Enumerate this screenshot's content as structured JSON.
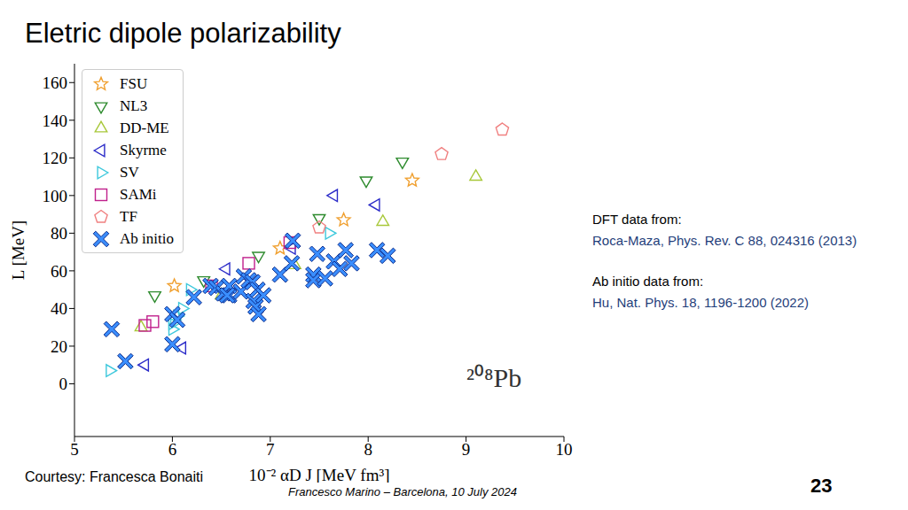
{
  "slide": {
    "title": "Eletric dipole polarizability",
    "notes": [
      {
        "heading": "DFT data from:",
        "reference": "Roca-Maza, Phys. Rev. C 88, 024316 (2013)"
      },
      {
        "heading": "Ab initio data from:",
        "reference": "Hu, Nat. Phys. 18, 1196-1200 (2022)"
      }
    ],
    "credit": "Courtesy: Francesca Bonaiti",
    "footer": "Francesco Marino – Barcelona, 10 July 2024",
    "page": "23"
  },
  "chart_data": {
    "type": "scatter",
    "x_label": "10⁻² αD J [MeV fm³]",
    "y_label": "L [MeV]",
    "annotation": "²⁰⁸Pb",
    "xlim": [
      5,
      10
    ],
    "xticks": [
      5,
      6,
      7,
      8,
      9,
      10
    ],
    "ylim": [
      -28,
      170
    ],
    "yticks": [
      0,
      20,
      40,
      60,
      80,
      100,
      120,
      140,
      160
    ],
    "grid": false,
    "legend": "upper left",
    "series": [
      {
        "name": "FSU",
        "color": "#f0a030",
        "marker": "star",
        "x": [
          6.02,
          7.1,
          7.75,
          8.45
        ],
        "y": [
          52,
          72,
          87,
          108
        ]
      },
      {
        "name": "NL3",
        "color": "#2e8b2e",
        "marker": "triangle_down",
        "x": [
          5.82,
          6.32,
          6.88,
          7.5,
          7.98,
          8.35
        ],
        "y": [
          47,
          55,
          68,
          88,
          108,
          118
        ]
      },
      {
        "name": "DD-ME",
        "color": "#a8c83a",
        "marker": "triangle_up",
        "x": [
          5.68,
          6.5,
          7.25,
          8.15,
          9.1
        ],
        "y": [
          30,
          47,
          63,
          86,
          110
        ]
      },
      {
        "name": "Skyrme",
        "color": "#2b2bc8",
        "marker": "triangle_left",
        "x": [
          5.72,
          6.1,
          6.55,
          7.22,
          7.65,
          8.08
        ],
        "y": [
          10,
          19,
          61,
          72,
          100,
          95
        ]
      },
      {
        "name": "SV",
        "color": "#3dc8dc",
        "marker": "triangle_right",
        "x": [
          5.36,
          6.0,
          6.0,
          6.02,
          6.05,
          6.1,
          6.18,
          7.6
        ],
        "y": [
          7,
          29,
          32,
          34,
          36,
          40,
          50,
          80
        ]
      },
      {
        "name": "SAMi",
        "color": "#c0208c",
        "marker": "square",
        "x": [
          5.72,
          5.8,
          6.4,
          6.78,
          7.2
        ],
        "y": [
          31,
          33,
          52,
          64,
          75
        ]
      },
      {
        "name": "TF",
        "color": "#f08080",
        "marker": "pentagon",
        "x": [
          7.5,
          8.75,
          9.37
        ],
        "y": [
          83,
          122,
          135
        ]
      },
      {
        "name": "Ab initio",
        "color": "#3a8eff",
        "marker": "X",
        "x": [
          5.38,
          5.52,
          6.0,
          6.0,
          6.05,
          6.22,
          6.39,
          6.45,
          6.52,
          6.58,
          6.58,
          6.56,
          6.7,
          6.73,
          6.78,
          6.82,
          6.83,
          6.85,
          6.87,
          6.88,
          6.93,
          7.1,
          7.22,
          7.23,
          7.44,
          7.44,
          7.48,
          7.56,
          7.65,
          7.71,
          7.77,
          7.83,
          8.09,
          8.2
        ],
        "y": [
          29,
          12,
          37,
          21,
          34,
          46,
          52,
          51,
          48,
          47,
          52,
          47,
          49,
          57,
          55,
          54,
          44,
          41,
          50,
          37,
          47,
          58,
          64,
          76,
          58,
          55,
          69,
          56,
          65,
          61,
          71,
          64,
          71,
          68
        ]
      }
    ]
  }
}
